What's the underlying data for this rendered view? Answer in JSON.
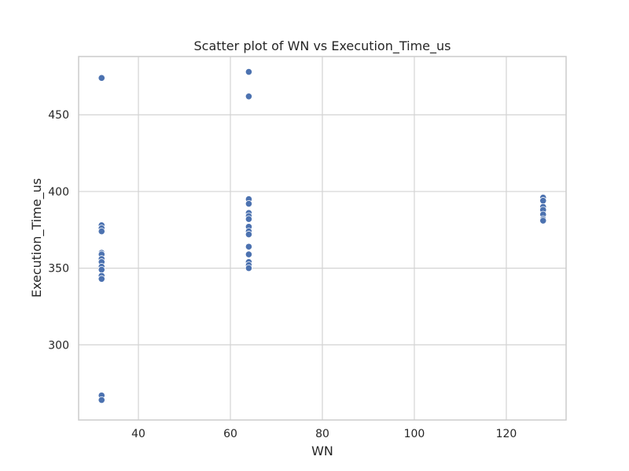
{
  "chart_data": {
    "type": "scatter",
    "title": "Scatter plot of WN vs Execution_Time_us",
    "xlabel": "WN",
    "ylabel": "Execution_Time_us",
    "xlim": [
      27,
      133
    ],
    "ylim": [
      251,
      488
    ],
    "x_ticks": [
      40,
      60,
      80,
      100,
      120
    ],
    "y_ticks": [
      300,
      350,
      400,
      450
    ],
    "grid": true,
    "series": [
      {
        "name": "Execution_Time_us",
        "points": [
          {
            "x": 32,
            "y": 474
          },
          {
            "x": 32,
            "y": 378
          },
          {
            "x": 32,
            "y": 376
          },
          {
            "x": 32,
            "y": 374
          },
          {
            "x": 32,
            "y": 360
          },
          {
            "x": 32,
            "y": 359
          },
          {
            "x": 32,
            "y": 356
          },
          {
            "x": 32,
            "y": 354
          },
          {
            "x": 32,
            "y": 351
          },
          {
            "x": 32,
            "y": 349
          },
          {
            "x": 32,
            "y": 345
          },
          {
            "x": 32,
            "y": 343
          },
          {
            "x": 32,
            "y": 267
          },
          {
            "x": 32,
            "y": 264
          },
          {
            "x": 64,
            "y": 478
          },
          {
            "x": 64,
            "y": 462
          },
          {
            "x": 64,
            "y": 395
          },
          {
            "x": 64,
            "y": 392
          },
          {
            "x": 64,
            "y": 386
          },
          {
            "x": 64,
            "y": 384
          },
          {
            "x": 64,
            "y": 382
          },
          {
            "x": 64,
            "y": 377
          },
          {
            "x": 64,
            "y": 374
          },
          {
            "x": 64,
            "y": 372
          },
          {
            "x": 64,
            "y": 364
          },
          {
            "x": 64,
            "y": 359
          },
          {
            "x": 64,
            "y": 354
          },
          {
            "x": 64,
            "y": 352
          },
          {
            "x": 64,
            "y": 350
          },
          {
            "x": 128,
            "y": 396
          },
          {
            "x": 128,
            "y": 394
          },
          {
            "x": 128,
            "y": 390
          },
          {
            "x": 128,
            "y": 388
          },
          {
            "x": 128,
            "y": 385
          },
          {
            "x": 128,
            "y": 382
          },
          {
            "x": 128,
            "y": 381
          }
        ]
      }
    ],
    "colors": {
      "marker": "#4c72b0",
      "marker_edge": "#ffffff",
      "grid": "#d3d3d3",
      "spine": "#cccccc",
      "text": "#262626"
    }
  }
}
